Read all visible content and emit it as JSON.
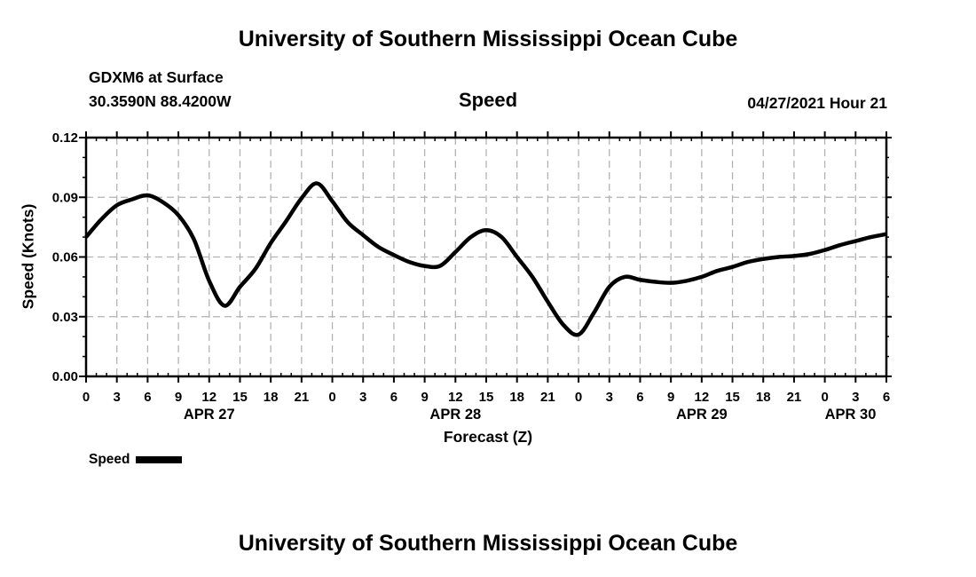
{
  "header": {
    "title_top": "University of Southern Mississippi Ocean Cube",
    "station": "GDXM6 at Surface",
    "coords": "30.3590N  88.4200W",
    "plot_title": "Speed",
    "datetime": "04/27/2021 Hour 21"
  },
  "footer": {
    "title_bottom": "University of Southern Mississippi Ocean Cube"
  },
  "legend": {
    "label": "Speed",
    "swatch_color": "#000000"
  },
  "chart_data": {
    "type": "line",
    "title": "Speed",
    "xlabel": "Forecast (Z)",
    "ylabel": "Speed (Knots)",
    "ylim": [
      0,
      0.12
    ],
    "yticks": [
      0,
      0.03,
      0.06,
      0.09,
      0.12
    ],
    "ytick_labels": [
      "0.00",
      "0.03",
      "0.06",
      "0.09",
      "0.12"
    ],
    "y_minor_step": 0.01,
    "x_hours_range": [
      0,
      78
    ],
    "xtick_step_hours": 3,
    "x_minor_step_hours": 1,
    "xtick_labels": [
      "0",
      "3",
      "6",
      "9",
      "12",
      "15",
      "18",
      "21",
      "0",
      "3",
      "6",
      "9",
      "12",
      "15",
      "18",
      "21",
      "0",
      "3",
      "6",
      "9",
      "12",
      "15",
      "18",
      "21",
      "0",
      "3",
      "6"
    ],
    "date_labels": [
      {
        "label": "APR 27",
        "hour": 12
      },
      {
        "label": "APR 28",
        "hour": 36
      },
      {
        "label": "APR 29",
        "hour": 60
      },
      {
        "label": "APR 30",
        "hour": 74.5
      }
    ],
    "grid": "dashed",
    "grid_color": "#b3b3b3",
    "line_color": "#000000",
    "legend_position": "bottom-left",
    "series": [
      {
        "name": "Speed",
        "x": [
          0,
          1.5,
          3,
          4.5,
          6,
          7.5,
          9,
          10.5,
          12,
          13.5,
          15,
          16.5,
          18,
          19.5,
          21,
          22.5,
          24,
          25.5,
          27,
          28.5,
          30,
          31.5,
          33,
          34.5,
          36,
          37.5,
          39,
          40.5,
          42,
          43.5,
          45,
          46.5,
          48,
          49.5,
          51,
          52.5,
          54,
          55.5,
          57,
          58.5,
          60,
          61.5,
          63,
          64.5,
          66,
          67.5,
          69,
          70.5,
          72,
          73.5,
          75,
          76.5,
          78
        ],
        "y": [
          0.07,
          0.079,
          0.086,
          0.089,
          0.091,
          0.0875,
          0.081,
          0.069,
          0.048,
          0.0355,
          0.045,
          0.054,
          0.067,
          0.078,
          0.0895,
          0.097,
          0.088,
          0.0775,
          0.071,
          0.065,
          0.061,
          0.0575,
          0.0555,
          0.0555,
          0.0625,
          0.07,
          0.0735,
          0.07,
          0.06,
          0.05,
          0.0375,
          0.026,
          0.021,
          0.032,
          0.045,
          0.05,
          0.0485,
          0.0475,
          0.047,
          0.048,
          0.05,
          0.053,
          0.055,
          0.0575,
          0.059,
          0.06,
          0.0605,
          0.0615,
          0.0635,
          0.066,
          0.068,
          0.07,
          0.0715
        ]
      }
    ]
  }
}
